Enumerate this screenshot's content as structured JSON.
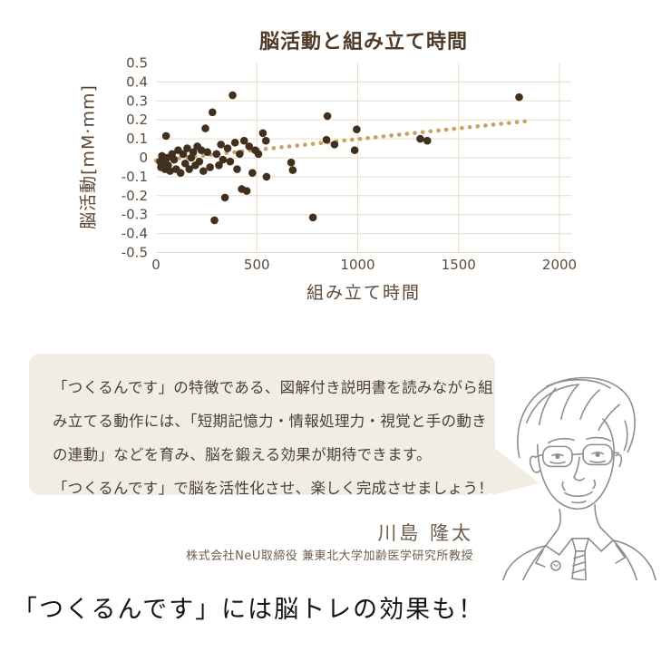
{
  "chart_data": {
    "type": "scatter",
    "title": "脳活動と組み立て時間",
    "xlabel": "組み立て時間",
    "ylabel": "脳活動[mM·mm]",
    "xlim": [
      0,
      2000
    ],
    "ylim": [
      -0.5,
      0.5
    ],
    "x_ticks": [
      0,
      500,
      1000,
      1500,
      2000
    ],
    "y_ticks": [
      0.5,
      0.4,
      0.3,
      0.2,
      0.1,
      0,
      -0.1,
      -0.2,
      -0.3,
      -0.4,
      -0.5
    ],
    "grid": true,
    "legend": false,
    "points": [
      [
        20,
        -0.02
      ],
      [
        25,
        -0.05
      ],
      [
        30,
        0.01
      ],
      [
        38,
        -0.03
      ],
      [
        45,
        -0.06
      ],
      [
        50,
        0.115
      ],
      [
        55,
        0.0
      ],
      [
        60,
        -0.04
      ],
      [
        70,
        -0.07
      ],
      [
        80,
        0.02
      ],
      [
        90,
        -0.01
      ],
      [
        100,
        -0.06
      ],
      [
        110,
        0.04
      ],
      [
        122,
        -0.08
      ],
      [
        135,
        0.02
      ],
      [
        145,
        -0.03
      ],
      [
        155,
        0.05
      ],
      [
        165,
        -0.06
      ],
      [
        175,
        0.0
      ],
      [
        185,
        0.03
      ],
      [
        195,
        -0.04
      ],
      [
        205,
        0.06
      ],
      [
        215,
        -0.02
      ],
      [
        225,
        0.04
      ],
      [
        235,
        -0.07
      ],
      [
        245,
        0.155
      ],
      [
        255,
        0.03
      ],
      [
        268,
        -0.05
      ],
      [
        280,
        0.24
      ],
      [
        290,
        -0.33
      ],
      [
        300,
        0.02
      ],
      [
        312,
        -0.04
      ],
      [
        322,
        0.07
      ],
      [
        332,
        -0.01
      ],
      [
        342,
        -0.21
      ],
      [
        355,
        0.05
      ],
      [
        368,
        -0.02
      ],
      [
        380,
        0.33
      ],
      [
        392,
        0.08
      ],
      [
        402,
        -0.06
      ],
      [
        415,
        0.02
      ],
      [
        425,
        -0.165
      ],
      [
        437,
        0.09
      ],
      [
        450,
        -0.175
      ],
      [
        462,
        0.06
      ],
      [
        478,
        -0.08
      ],
      [
        492,
        0.04
      ],
      [
        508,
        0.02
      ],
      [
        530,
        0.13
      ],
      [
        545,
        0.09
      ],
      [
        548,
        -0.1
      ],
      [
        670,
        -0.025
      ],
      [
        678,
        -0.065
      ],
      [
        778,
        -0.315
      ],
      [
        845,
        0.095
      ],
      [
        850,
        0.22
      ],
      [
        885,
        0.07
      ],
      [
        985,
        0.04
      ],
      [
        995,
        0.15
      ],
      [
        1310,
        0.1
      ],
      [
        1345,
        0.09
      ],
      [
        1800,
        0.32
      ]
    ],
    "trend": {
      "style": "dotted-linear",
      "start": [
        0,
        -0.015
      ],
      "end": [
        1850,
        0.195
      ]
    },
    "colors": {
      "point": "#42301f",
      "trend": "#c9a266",
      "grid": "#eadcc3",
      "axis_text": "#5d4b3c",
      "title_text": "#4f3a28"
    }
  },
  "bubble": {
    "lines": [
      "「つくるんです」の特徴である、図解付き説明書を読みながら組",
      "み立てる動作には、「短期記憶力・情報処理力・視覚と手の動き",
      "の連動」などを育み、脳を鍛える効果が期待できます。",
      "「つくるんです」で脳を活性化させ、楽しく完成させましょう！"
    ],
    "background": "#f2ede3"
  },
  "expert": {
    "name": "川島 隆太",
    "title": "株式会社NeU取締役 兼東北大学加齢医学研究所教授",
    "portrait": "line-art-older-man-glasses-suit"
  },
  "headline": "「つくるんです」には脳トレの効果も！"
}
